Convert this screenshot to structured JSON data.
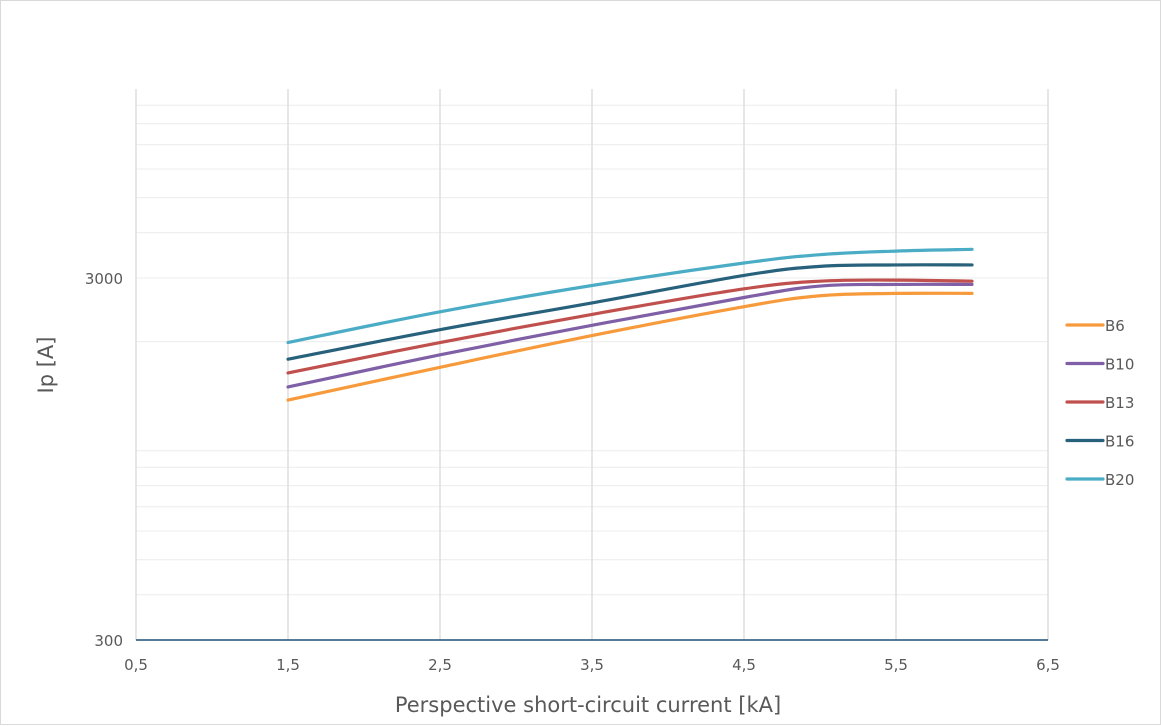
{
  "chart_data": {
    "type": "line",
    "xlabel": "Perspective short-circuit current [kA]",
    "ylabel": "Ip [A]",
    "x_ticks": [
      "0,5",
      "1,5",
      "2,5",
      "3,5",
      "4,5",
      "5,5",
      "6,5"
    ],
    "y_ticks": [
      "300",
      "3000"
    ],
    "xlim": [
      0.5,
      6.5
    ],
    "ylim": [
      300,
      10000
    ],
    "y_scale": "log",
    "grid": true,
    "legend_position": "right",
    "x": [
      1.5,
      2.5,
      3.5,
      4.5,
      5.0,
      5.5,
      6.0
    ],
    "series": [
      {
        "name": "B6",
        "color": "#F79A3B",
        "values": [
          1380,
          1700,
          2080,
          2500,
          2680,
          2720,
          2720
        ]
      },
      {
        "name": "B10",
        "color": "#7F5FA6",
        "values": [
          1500,
          1840,
          2220,
          2650,
          2850,
          2880,
          2880
        ]
      },
      {
        "name": "B13",
        "color": "#C0504D",
        "values": [
          1640,
          1990,
          2380,
          2800,
          2940,
          2960,
          2940
        ]
      },
      {
        "name": "B16",
        "color": "#27617B",
        "values": [
          1790,
          2160,
          2560,
          3050,
          3230,
          3260,
          3260
        ]
      },
      {
        "name": "B20",
        "color": "#4BACC6",
        "values": [
          1990,
          2420,
          2860,
          3300,
          3480,
          3560,
          3600
        ]
      }
    ]
  }
}
